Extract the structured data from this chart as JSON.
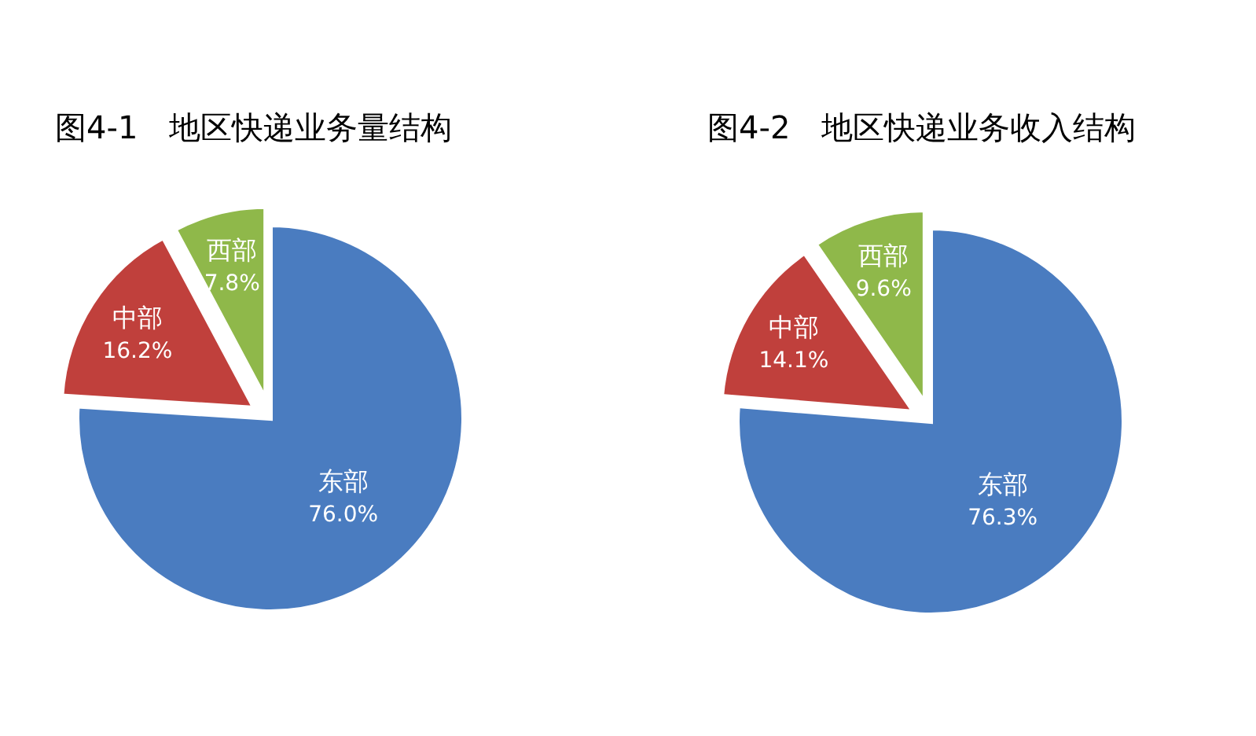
{
  "chart_data": [
    {
      "type": "pie",
      "title": "图4-1　地区快递业务量结构",
      "categories": [
        "东部",
        "中部",
        "西部"
      ],
      "values": [
        76.0,
        16.2,
        7.8
      ],
      "value_labels": [
        "76.0%",
        "16.2%",
        "7.8%"
      ],
      "colors": [
        "#4a7cc0",
        "#c0403c",
        "#8fb84a"
      ]
    },
    {
      "type": "pie",
      "title": "图4-2　地区快递业务收入结构",
      "categories": [
        "东部",
        "中部",
        "西部"
      ],
      "values": [
        76.3,
        14.1,
        9.6
      ],
      "value_labels": [
        "76.3%",
        "14.1%",
        "9.6%"
      ],
      "colors": [
        "#4a7cc0",
        "#c0403c",
        "#8fb84a"
      ]
    }
  ]
}
